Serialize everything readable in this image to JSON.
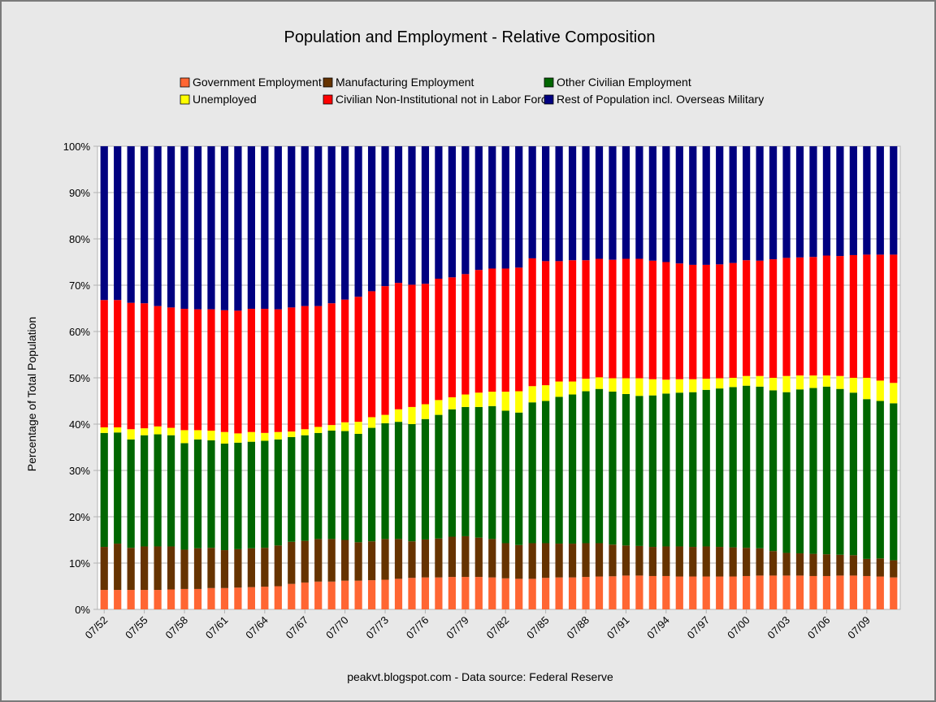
{
  "chart_data": {
    "type": "bar",
    "stacked": true,
    "title": "Population and Employment - Relative Composition",
    "ylabel": "Percentage of Total Population",
    "xlabel": "",
    "ylim": [
      0,
      100
    ],
    "y_ticks": [
      "0%",
      "10%",
      "20%",
      "30%",
      "40%",
      "50%",
      "60%",
      "70%",
      "80%",
      "90%",
      "100%"
    ],
    "x_tick_labels": [
      "07/52",
      "07/55",
      "07/58",
      "07/61",
      "07/64",
      "07/67",
      "07/70",
      "07/73",
      "07/76",
      "07/79",
      "07/82",
      "07/85",
      "07/88",
      "07/91",
      "07/94",
      "07/97",
      "07/00",
      "07/03",
      "07/06",
      "07/09"
    ],
    "categories": [
      "07/52",
      "07/53",
      "07/54",
      "07/55",
      "07/56",
      "07/57",
      "07/58",
      "07/59",
      "07/60",
      "07/61",
      "07/62",
      "07/63",
      "07/64",
      "07/65",
      "07/66",
      "07/67",
      "07/68",
      "07/69",
      "07/70",
      "07/71",
      "07/72",
      "07/73",
      "07/74",
      "07/75",
      "07/76",
      "07/77",
      "07/78",
      "07/79",
      "07/80",
      "07/81",
      "07/82",
      "07/83",
      "07/84",
      "07/85",
      "07/86",
      "07/87",
      "07/88",
      "07/89",
      "07/90",
      "07/91",
      "07/92",
      "07/93",
      "07/94",
      "07/95",
      "07/96",
      "07/97",
      "07/98",
      "07/99",
      "07/00",
      "07/01",
      "07/02",
      "07/03",
      "07/04",
      "07/05",
      "07/06",
      "07/07",
      "07/08",
      "07/09",
      "07/10",
      "07/11"
    ],
    "grid": true,
    "legend_position": "top",
    "source_note": "peakvt.blogspot.com - Data source: Federal Reserve",
    "series": [
      {
        "name": "Government Employment",
        "color": "#ff6633",
        "values": [
          4.2,
          4.2,
          4.2,
          4.2,
          4.2,
          4.3,
          4.4,
          4.4,
          4.6,
          4.6,
          4.7,
          4.8,
          4.9,
          5.0,
          5.5,
          5.8,
          6.0,
          6.0,
          6.2,
          6.2,
          6.3,
          6.4,
          6.6,
          6.8,
          6.9,
          6.9,
          7.0,
          7.0,
          7.0,
          6.9,
          6.7,
          6.6,
          6.6,
          6.8,
          6.9,
          6.9,
          7.0,
          7.1,
          7.2,
          7.3,
          7.3,
          7.2,
          7.2,
          7.1,
          7.1,
          7.1,
          7.1,
          7.1,
          7.2,
          7.3,
          7.3,
          7.3,
          7.3,
          7.2,
          7.2,
          7.3,
          7.3,
          7.2,
          7.1,
          6.9
        ]
      },
      {
        "name": "Manufacturing Employment",
        "color": "#663300",
        "values": [
          9.3,
          10.0,
          9.1,
          9.4,
          9.4,
          9.3,
          8.5,
          8.8,
          8.7,
          8.2,
          8.3,
          8.4,
          8.4,
          8.8,
          9.1,
          9.0,
          9.2,
          9.2,
          8.8,
          8.3,
          8.4,
          8.8,
          8.6,
          7.9,
          8.2,
          8.4,
          8.7,
          8.8,
          8.5,
          8.3,
          7.6,
          7.3,
          7.7,
          7.5,
          7.3,
          7.3,
          7.3,
          7.2,
          6.9,
          6.5,
          6.4,
          6.3,
          6.4,
          6.5,
          6.4,
          6.5,
          6.4,
          6.3,
          6.1,
          5.9,
          5.3,
          4.9,
          4.8,
          4.8,
          4.7,
          4.5,
          4.4,
          3.7,
          3.9,
          3.7
        ]
      },
      {
        "name": "Other Civilian Employment",
        "color": "#006600",
        "values": [
          24.6,
          24.0,
          23.4,
          24.0,
          24.2,
          24.0,
          23.0,
          23.5,
          23.2,
          23.0,
          23.0,
          23.0,
          23.1,
          22.9,
          22.6,
          22.8,
          22.9,
          23.4,
          23.5,
          23.4,
          24.5,
          25.0,
          25.3,
          25.3,
          26.0,
          26.7,
          27.5,
          27.9,
          28.2,
          28.7,
          28.6,
          28.6,
          30.4,
          30.7,
          31.7,
          32.2,
          32.8,
          33.3,
          33.3,
          32.7,
          32.4,
          32.7,
          33.0,
          33.2,
          33.4,
          33.8,
          34.2,
          34.6,
          35.0,
          34.9,
          34.7,
          34.7,
          35.4,
          35.8,
          36.2,
          35.8,
          35.1,
          34.5,
          34.0,
          33.9
        ]
      },
      {
        "name": "Unemployed",
        "color": "#ffff00",
        "values": [
          1.2,
          1.1,
          2.2,
          1.5,
          1.7,
          1.6,
          2.8,
          2.0,
          2.1,
          2.5,
          2.0,
          2.1,
          1.7,
          1.6,
          1.2,
          1.3,
          1.3,
          1.2,
          1.9,
          2.6,
          2.3,
          1.8,
          2.7,
          3.7,
          3.2,
          3.2,
          2.6,
          2.7,
          3.1,
          3.1,
          4.1,
          4.6,
          3.5,
          3.4,
          3.3,
          2.8,
          2.7,
          2.5,
          2.9,
          3.4,
          3.8,
          3.5,
          3.0,
          2.9,
          2.8,
          2.4,
          2.2,
          2.0,
          2.1,
          2.3,
          2.7,
          3.5,
          3.0,
          2.7,
          2.4,
          2.8,
          3.2,
          4.6,
          4.4,
          4.4
        ]
      },
      {
        "name": "Civilian Non-Institutional not in Labor Force",
        "color": "#ff0000",
        "values": [
          27.5,
          27.5,
          27.3,
          27.0,
          26.0,
          26.0,
          26.2,
          26.1,
          26.2,
          26.3,
          26.5,
          26.6,
          26.8,
          26.5,
          26.8,
          26.6,
          26.1,
          26.3,
          26.5,
          27.0,
          27.2,
          27.8,
          27.3,
          26.4,
          26.0,
          26.2,
          25.9,
          26.0,
          26.5,
          26.6,
          26.6,
          26.7,
          27.6,
          26.8,
          26.0,
          26.2,
          25.6,
          25.6,
          25.8,
          25.8,
          25.8,
          25.6,
          25.4,
          25.0,
          24.7,
          24.6,
          24.6,
          24.8,
          25.0,
          24.9,
          25.6,
          25.5,
          25.5,
          25.6,
          25.9,
          25.9,
          26.5,
          26.6,
          27.2,
          27.7
        ]
      },
      {
        "name": "Rest of Population incl. Overseas Military",
        "color": "#000080",
        "values": [
          33.2,
          33.2,
          33.8,
          33.9,
          34.5,
          34.8,
          35.1,
          35.2,
          35.2,
          35.4,
          35.5,
          35.1,
          35.1,
          35.2,
          34.8,
          34.5,
          34.5,
          33.9,
          33.1,
          32.5,
          31.3,
          30.2,
          29.5,
          29.9,
          29.7,
          28.6,
          28.3,
          27.6,
          26.7,
          26.4,
          26.4,
          26.2,
          24.2,
          24.8,
          24.8,
          24.6,
          24.6,
          24.3,
          24.7,
          24.3,
          24.3,
          24.7,
          25.0,
          25.3,
          25.6,
          25.6,
          25.5,
          25.2,
          24.6,
          24.7,
          24.4,
          24.1,
          24.0,
          23.9,
          23.6,
          23.7,
          23.5,
          23.4,
          23.4,
          23.4
        ]
      }
    ]
  }
}
